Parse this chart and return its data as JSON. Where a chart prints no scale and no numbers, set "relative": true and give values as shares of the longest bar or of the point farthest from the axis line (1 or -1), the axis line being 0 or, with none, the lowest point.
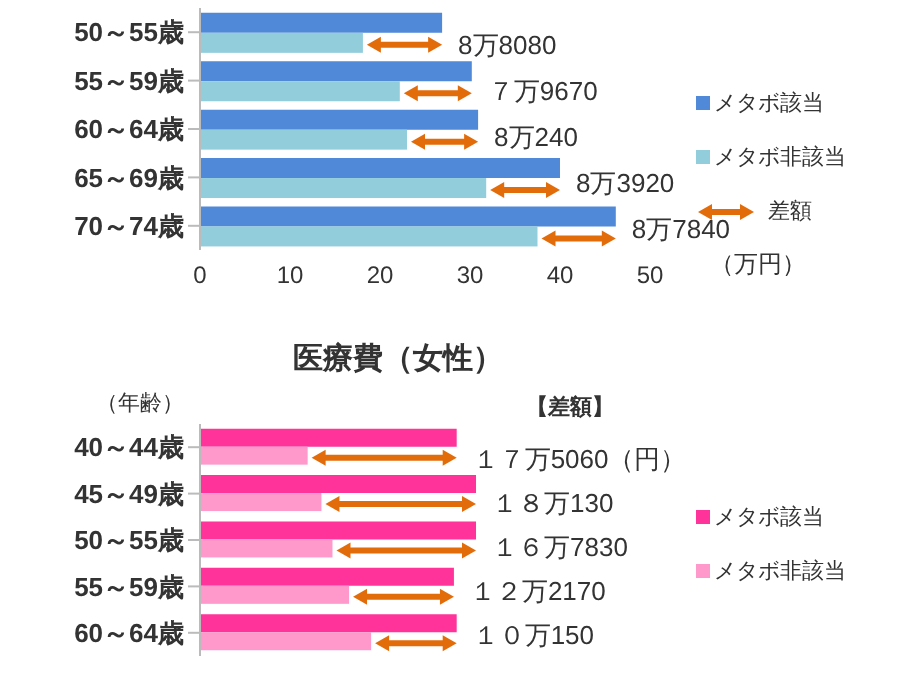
{
  "chart_data": [
    {
      "type": "bar",
      "orientation": "horizontal",
      "xlabel": "（万円）",
      "categories": [
        "50～55歳",
        "55～59歳",
        "60～64歳",
        "65～69歳",
        "70～74歳"
      ],
      "series": [
        {
          "name": "メタボ該当",
          "color": "#4f89d8",
          "values": [
            26.9,
            30.2,
            30.9,
            40.0,
            46.2
          ]
        },
        {
          "name": "メタボ非該当",
          "color": "#92cddc",
          "values": [
            18.1,
            22.2,
            23.0,
            31.8,
            37.5
          ]
        }
      ],
      "xlim": [
        0,
        50
      ],
      "xticks": [
        0,
        10,
        20,
        30,
        40,
        50
      ],
      "grid": false,
      "legend": "right",
      "annotations": [
        "8万8080",
        "７万9670",
        "8万240",
        "8万3920",
        "8万7840",
        "差額"
      ]
    },
    {
      "type": "bar",
      "orientation": "horizontal",
      "relative": true,
      "title": "医療費（女性）",
      "ylabel": "（年齢）",
      "categories": [
        "40～44歳",
        "45～49歳",
        "50～55歳",
        "55～59歳",
        "60～64歳"
      ],
      "series": [
        {
          "name": "メタボ該当",
          "color": "#ff3399",
          "values": [
            0.93,
            1.0,
            1.0,
            0.92,
            0.93
          ]
        },
        {
          "name": "メタボ非該当",
          "color": "#ff99cc",
          "values": [
            0.39,
            0.44,
            0.48,
            0.54,
            0.62
          ]
        }
      ],
      "grid": false,
      "legend": "right",
      "annotations": [
        "１７万5060（円）",
        "１８万130",
        "１６万7830",
        "１２万2170",
        "１０万150",
        "【差額】"
      ]
    }
  ]
}
